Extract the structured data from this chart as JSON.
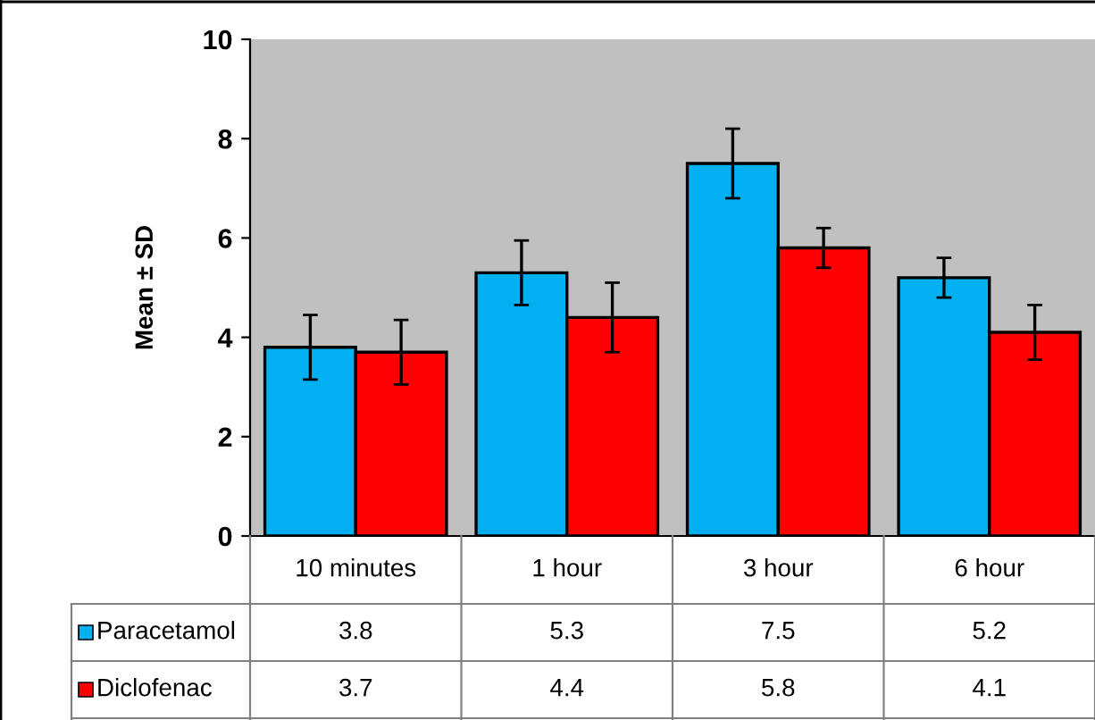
{
  "chart_data": {
    "type": "bar",
    "ylabel": "Mean ± SD",
    "categories": [
      "10 minutes",
      "1 hour",
      "3 hour",
      "6 hour"
    ],
    "series": [
      {
        "name": "Paracetamol",
        "color": "#00b0f0",
        "values": [
          3.8,
          5.3,
          7.5,
          5.2
        ],
        "errors": [
          0.65,
          0.65,
          0.7,
          0.4
        ]
      },
      {
        "name": "Diclofenac",
        "color": "#ff0000",
        "values": [
          3.7,
          4.4,
          5.8,
          4.1
        ],
        "errors": [
          0.65,
          0.7,
          0.4,
          0.55
        ]
      }
    ],
    "ylim": [
      0,
      10
    ],
    "yticks": [
      0,
      2,
      4,
      6,
      8,
      10
    ],
    "grid": false,
    "data_labels": true,
    "legend": "bottom"
  }
}
